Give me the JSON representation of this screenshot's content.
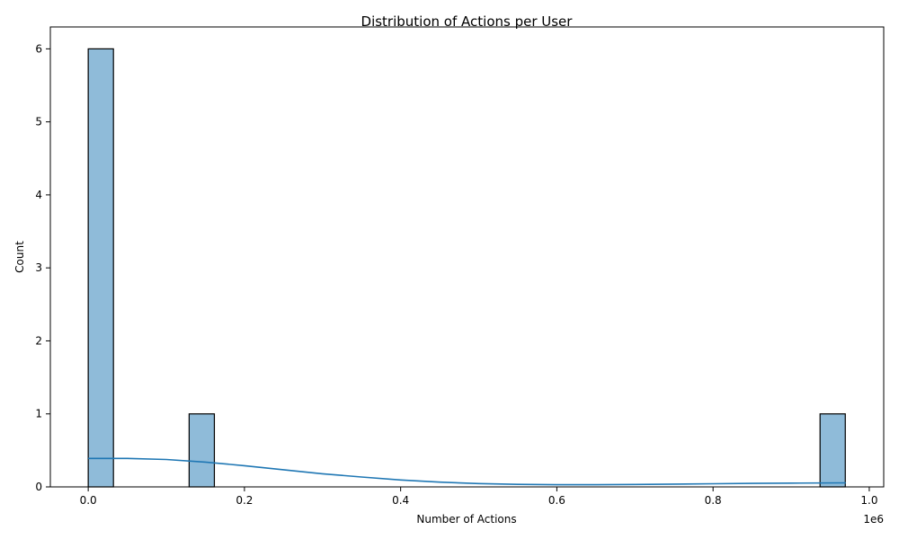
{
  "chart_data": {
    "type": "bar",
    "title": "Distribution of Actions per User",
    "xlabel": "Number of Actions",
    "ylabel": "Count",
    "x_offset_text": "1e6",
    "xlim": [
      -0.0485,
      1.0185
    ],
    "ylim": [
      0,
      6.3
    ],
    "x_ticks": [
      0.0,
      0.2,
      0.4,
      0.6,
      0.8,
      1.0
    ],
    "x_tick_labels": [
      "0.0",
      "0.2",
      "0.4",
      "0.6",
      "0.8",
      "1.0"
    ],
    "y_ticks": [
      0,
      1,
      2,
      3,
      4,
      5,
      6
    ],
    "y_tick_labels": [
      "0",
      "1",
      "2",
      "3",
      "4",
      "5",
      "6"
    ],
    "bin_width": 0.0323,
    "bins": [
      {
        "x0": 0.0,
        "count": 6
      },
      {
        "x0": 0.1292,
        "count": 1
      },
      {
        "x0": 0.937,
        "count": 1
      }
    ],
    "kde": {
      "name": "",
      "x": [
        0.0,
        0.05,
        0.1,
        0.15,
        0.2,
        0.25,
        0.3,
        0.35,
        0.4,
        0.45,
        0.5,
        0.55,
        0.6,
        0.65,
        0.7,
        0.75,
        0.8,
        0.85,
        0.9,
        0.97
      ],
      "y": [
        0.39,
        0.39,
        0.375,
        0.34,
        0.29,
        0.235,
        0.18,
        0.135,
        0.095,
        0.065,
        0.045,
        0.035,
        0.03,
        0.03,
        0.033,
        0.038,
        0.043,
        0.048,
        0.052,
        0.055
      ]
    },
    "grid": false,
    "colors": {
      "bar_fill": "#8fbbd9",
      "bar_edge": "#000000",
      "kde_line": "#1f77b4"
    }
  }
}
